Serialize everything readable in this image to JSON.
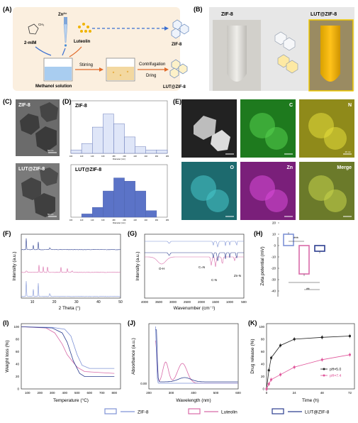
{
  "panels": {
    "A": {
      "letter": "(A)",
      "reagents": {
        "zn": "Zn²⁺",
        "mim": "2-mIM",
        "ch3": "CH₃",
        "luteolin": "Luteolin",
        "solvent": "Methanol solution"
      },
      "steps": {
        "stirring": "Stirring",
        "centrifugation": "Contrifugation",
        "drying": "Dring"
      },
      "products": {
        "zif8": "ZIF-8",
        "lut": "LUT@ZIF-8"
      }
    },
    "B": {
      "letter": "(B)",
      "left": "ZIF-8",
      "right": "LUT@ZIF-8"
    },
    "C": {
      "letter": "(C)",
      "top": "ZIF-8",
      "bottom": "LUT@ZIF-8",
      "scale_top": "50 nm",
      "scale_bottom": "50 nm"
    },
    "D": {
      "letter": "(D)",
      "xlabel": "Diameter (nm)",
      "hists": [
        {
          "title": "ZIF-8",
          "bins": [
            "100",
            "120",
            "140",
            "160",
            "180",
            "200",
            "220",
            "240",
            "260",
            "280"
          ],
          "values": [
            1,
            3,
            8,
            12,
            9,
            5,
            2,
            1,
            1
          ]
        },
        {
          "title": "LUT@ZIF-8",
          "bins": [
            "100",
            "120",
            "140",
            "160",
            "180",
            "200",
            "220",
            "240",
            "260",
            "280"
          ],
          "values": [
            0,
            1,
            3,
            8,
            12,
            11,
            8,
            2,
            0
          ]
        }
      ]
    },
    "E": {
      "letter": "(E)",
      "tiles": [
        "",
        "C",
        "N",
        "O",
        "Zn",
        "Merge"
      ],
      "scale": "20 nm"
    },
    "F": {
      "letter": "(F)",
      "xlabel": "2 Theta (°)",
      "ylabel": "Intensity (a.u.)",
      "xticks": [
        "10",
        "20",
        "30",
        "40",
        "50"
      ]
    },
    "G": {
      "letter": "(G)",
      "xlabel": "Wavenumber (cm⁻¹)",
      "ylabel": "Intensity (a.u.)",
      "xticks": [
        "4000",
        "3500",
        "3000",
        "2500",
        "2000",
        "1500",
        "1000",
        "500"
      ],
      "annotations": [
        "O-H",
        "C=N",
        "C-N",
        "Zn-N"
      ]
    },
    "H": {
      "letter": "(H)",
      "ylabel": "Zeta potential (mV)",
      "yticks": [
        "20",
        "10",
        "0",
        "-10",
        "-20",
        "-30",
        "-40"
      ],
      "values": [
        10,
        -25,
        -5
      ],
      "sig_top": "***",
      "sig_bottom": "**"
    },
    "I": {
      "letter": "(I)",
      "xlabel": "Temperature (°C)",
      "ylabel": "Weight loss (%)",
      "xticks": [
        "100",
        "200",
        "300",
        "400",
        "500",
        "600",
        "700",
        "800"
      ],
      "yticks": [
        "100",
        "80",
        "60",
        "40",
        "20",
        "0"
      ]
    },
    "J": {
      "letter": "(J)",
      "xlabel": "Wavelength (nm)",
      "ylabel": "Absorbance (a.u.)",
      "xticks": [
        "200",
        "300",
        "400",
        "500",
        "600"
      ],
      "yticks": [
        "0.00"
      ]
    },
    "K": {
      "letter": "(K)",
      "xlabel": "Time (h)",
      "ylabel": "Drug release (%)",
      "xticks": [
        "0",
        "24",
        "48",
        "72"
      ],
      "yticks": [
        "100",
        "80",
        "60",
        "40",
        "20",
        "0"
      ],
      "series": [
        {
          "name": "pH=5.0",
          "color": "#222222",
          "x": [
            0,
            2,
            4,
            12,
            24,
            48,
            72
          ],
          "y": [
            0,
            30,
            50,
            70,
            80,
            83,
            85
          ]
        },
        {
          "name": "pH=7.4",
          "color": "#e0559a",
          "x": [
            0,
            2,
            4,
            12,
            24,
            48,
            72
          ],
          "y": [
            0,
            8,
            15,
            23,
            35,
            47,
            55
          ]
        }
      ]
    }
  },
  "legend": [
    {
      "name": "ZIF-8",
      "color": "#7f93d6"
    },
    {
      "name": "Luteolin",
      "color": "#d86aa8"
    },
    {
      "name": "LUT@ZIF-8",
      "color": "#2c3e8f"
    }
  ]
}
